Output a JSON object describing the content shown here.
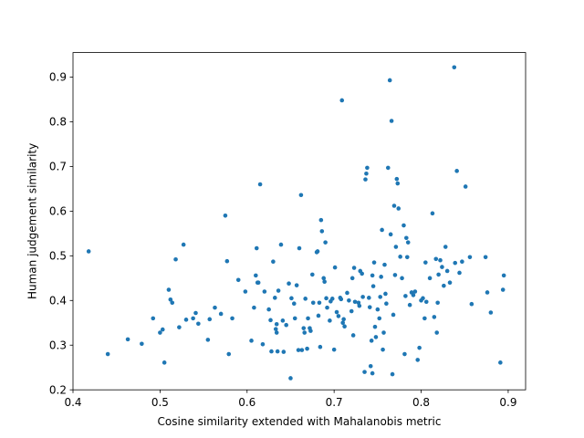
{
  "chart_data": {
    "type": "scatter",
    "title": "",
    "xlabel": "Cosine similarity extended with Mahalanobis metric",
    "ylabel": "Human judgement similarity",
    "xlim": [
      0.4,
      0.92
    ],
    "ylim": [
      0.2,
      0.955
    ],
    "xticks": [
      0.4,
      0.5,
      0.6,
      0.7,
      0.8,
      0.9
    ],
    "yticks": [
      0.2,
      0.3,
      0.4,
      0.5,
      0.6,
      0.7,
      0.8,
      0.9
    ],
    "grid": false,
    "marker_color": "#1f77b4",
    "points": [
      [
        0.418,
        0.51
      ],
      [
        0.44,
        0.28
      ],
      [
        0.463,
        0.313
      ],
      [
        0.479,
        0.303
      ],
      [
        0.492,
        0.36
      ],
      [
        0.5,
        0.328
      ],
      [
        0.503,
        0.335
      ],
      [
        0.505,
        0.261
      ],
      [
        0.51,
        0.424
      ],
      [
        0.512,
        0.402
      ],
      [
        0.514,
        0.395
      ],
      [
        0.518,
        0.492
      ],
      [
        0.522,
        0.34
      ],
      [
        0.527,
        0.525
      ],
      [
        0.53,
        0.357
      ],
      [
        0.538,
        0.36
      ],
      [
        0.541,
        0.372
      ],
      [
        0.544,
        0.348
      ],
      [
        0.555,
        0.312
      ],
      [
        0.557,
        0.358
      ],
      [
        0.563,
        0.384
      ],
      [
        0.57,
        0.37
      ],
      [
        0.575,
        0.59
      ],
      [
        0.577,
        0.488
      ],
      [
        0.579,
        0.28
      ],
      [
        0.583,
        0.36
      ],
      [
        0.59,
        0.446
      ],
      [
        0.598,
        0.42
      ],
      [
        0.605,
        0.31
      ],
      [
        0.608,
        0.384
      ],
      [
        0.61,
        0.456
      ],
      [
        0.611,
        0.517
      ],
      [
        0.612,
        0.44
      ],
      [
        0.613,
        0.44
      ],
      [
        0.615,
        0.66
      ],
      [
        0.618,
        0.302
      ],
      [
        0.62,
        0.42
      ],
      [
        0.625,
        0.38
      ],
      [
        0.627,
        0.356
      ],
      [
        0.628,
        0.286
      ],
      [
        0.63,
        0.487
      ],
      [
        0.632,
        0.406
      ],
      [
        0.633,
        0.336
      ],
      [
        0.634,
        0.347
      ],
      [
        0.634,
        0.328
      ],
      [
        0.635,
        0.286
      ],
      [
        0.636,
        0.422
      ],
      [
        0.639,
        0.525
      ],
      [
        0.641,
        0.355
      ],
      [
        0.642,
        0.285
      ],
      [
        0.645,
        0.345
      ],
      [
        0.648,
        0.438
      ],
      [
        0.65,
        0.226
      ],
      [
        0.651,
        0.405
      ],
      [
        0.654,
        0.393
      ],
      [
        0.655,
        0.36
      ],
      [
        0.657,
        0.434
      ],
      [
        0.659,
        0.289
      ],
      [
        0.66,
        0.517
      ],
      [
        0.662,
        0.636
      ],
      [
        0.663,
        0.289
      ],
      [
        0.665,
        0.338
      ],
      [
        0.666,
        0.328
      ],
      [
        0.667,
        0.404
      ],
      [
        0.669,
        0.292
      ],
      [
        0.67,
        0.36
      ],
      [
        0.672,
        0.338
      ],
      [
        0.673,
        0.332
      ],
      [
        0.675,
        0.458
      ],
      [
        0.676,
        0.395
      ],
      [
        0.68,
        0.508
      ],
      [
        0.681,
        0.51
      ],
      [
        0.682,
        0.366
      ],
      [
        0.683,
        0.395
      ],
      [
        0.684,
        0.296
      ],
      [
        0.685,
        0.58
      ],
      [
        0.686,
        0.555
      ],
      [
        0.688,
        0.45
      ],
      [
        0.689,
        0.442
      ],
      [
        0.69,
        0.53
      ],
      [
        0.691,
        0.405
      ],
      [
        0.692,
        0.384
      ],
      [
        0.695,
        0.355
      ],
      [
        0.696,
        0.398
      ],
      [
        0.698,
        0.404
      ],
      [
        0.7,
        0.29
      ],
      [
        0.701,
        0.474
      ],
      [
        0.703,
        0.374
      ],
      [
        0.705,
        0.365
      ],
      [
        0.707,
        0.406
      ],
      [
        0.708,
        0.403
      ],
      [
        0.709,
        0.848
      ],
      [
        0.71,
        0.35
      ],
      [
        0.711,
        0.358
      ],
      [
        0.712,
        0.342
      ],
      [
        0.715,
        0.417
      ],
      [
        0.717,
        0.4
      ],
      [
        0.72,
        0.376
      ],
      [
        0.721,
        0.45
      ],
      [
        0.722,
        0.322
      ],
      [
        0.723,
        0.473
      ],
      [
        0.724,
        0.397
      ],
      [
        0.728,
        0.395
      ],
      [
        0.729,
        0.388
      ],
      [
        0.73,
        0.466
      ],
      [
        0.732,
        0.46
      ],
      [
        0.733,
        0.408
      ],
      [
        0.735,
        0.24
      ],
      [
        0.736,
        0.671
      ],
      [
        0.737,
        0.684
      ],
      [
        0.738,
        0.697
      ],
      [
        0.74,
        0.406
      ],
      [
        0.741,
        0.385
      ],
      [
        0.742,
        0.253
      ],
      [
        0.743,
        0.31
      ],
      [
        0.744,
        0.237
      ],
      [
        0.744,
        0.456
      ],
      [
        0.745,
        0.432
      ],
      [
        0.746,
        0.485
      ],
      [
        0.747,
        0.341
      ],
      [
        0.748,
        0.318
      ],
      [
        0.75,
        0.38
      ],
      [
        0.752,
        0.36
      ],
      [
        0.753,
        0.408
      ],
      [
        0.754,
        0.453
      ],
      [
        0.755,
        0.558
      ],
      [
        0.756,
        0.29
      ],
      [
        0.757,
        0.328
      ],
      [
        0.758,
        0.48
      ],
      [
        0.759,
        0.415
      ],
      [
        0.76,
        0.393
      ],
      [
        0.762,
        0.697
      ],
      [
        0.764,
        0.893
      ],
      [
        0.765,
        0.548
      ],
      [
        0.766,
        0.802
      ],
      [
        0.767,
        0.235
      ],
      [
        0.768,
        0.368
      ],
      [
        0.769,
        0.612
      ],
      [
        0.77,
        0.457
      ],
      [
        0.771,
        0.52
      ],
      [
        0.772,
        0.672
      ],
      [
        0.773,
        0.662
      ],
      [
        0.774,
        0.606
      ],
      [
        0.776,
        0.498
      ],
      [
        0.778,
        0.45
      ],
      [
        0.78,
        0.568
      ],
      [
        0.781,
        0.28
      ],
      [
        0.782,
        0.41
      ],
      [
        0.783,
        0.54
      ],
      [
        0.784,
        0.497
      ],
      [
        0.785,
        0.53
      ],
      [
        0.787,
        0.39
      ],
      [
        0.789,
        0.418
      ],
      [
        0.791,
        0.412
      ],
      [
        0.793,
        0.42
      ],
      [
        0.796,
        0.267
      ],
      [
        0.798,
        0.294
      ],
      [
        0.8,
        0.4
      ],
      [
        0.802,
        0.405
      ],
      [
        0.804,
        0.36
      ],
      [
        0.805,
        0.485
      ],
      [
        0.806,
        0.397
      ],
      [
        0.81,
        0.45
      ],
      [
        0.813,
        0.595
      ],
      [
        0.815,
        0.363
      ],
      [
        0.817,
        0.493
      ],
      [
        0.818,
        0.328
      ],
      [
        0.819,
        0.395
      ],
      [
        0.82,
        0.458
      ],
      [
        0.822,
        0.49
      ],
      [
        0.824,
        0.475
      ],
      [
        0.826,
        0.433
      ],
      [
        0.828,
        0.52
      ],
      [
        0.83,
        0.466
      ],
      [
        0.833,
        0.44
      ],
      [
        0.838,
        0.922
      ],
      [
        0.839,
        0.484
      ],
      [
        0.841,
        0.69
      ],
      [
        0.844,
        0.462
      ],
      [
        0.847,
        0.487
      ],
      [
        0.851,
        0.655
      ],
      [
        0.856,
        0.497
      ],
      [
        0.858,
        0.392
      ],
      [
        0.874,
        0.497
      ],
      [
        0.876,
        0.418
      ],
      [
        0.88,
        0.373
      ],
      [
        0.891,
        0.261
      ],
      [
        0.894,
        0.424
      ],
      [
        0.895,
        0.456
      ]
    ]
  }
}
